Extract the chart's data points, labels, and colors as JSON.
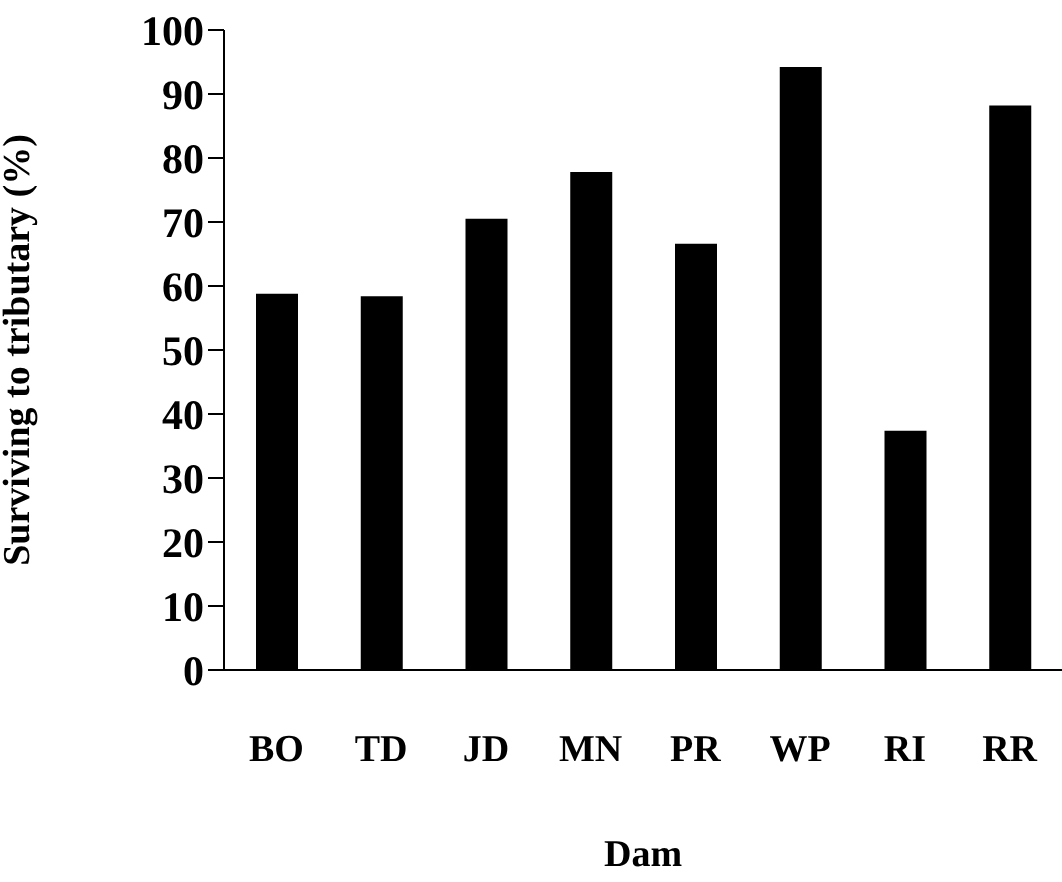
{
  "chart_data": {
    "type": "bar",
    "xlabel": "Dam",
    "ylabel": "Surviving to tributary (%)",
    "categories": [
      "BO",
      "TD",
      "JD",
      "MN",
      "PR",
      "WP",
      "RI",
      "RR"
    ],
    "values": [
      58.8,
      58.4,
      70.5,
      77.8,
      66.6,
      94.2,
      37.4,
      88.2
    ],
    "color": "#000000",
    "ylim": [
      0,
      100
    ],
    "yticks": [
      0,
      10,
      20,
      30,
      40,
      50,
      60,
      70,
      80,
      90,
      100
    ],
    "grid": false
  }
}
